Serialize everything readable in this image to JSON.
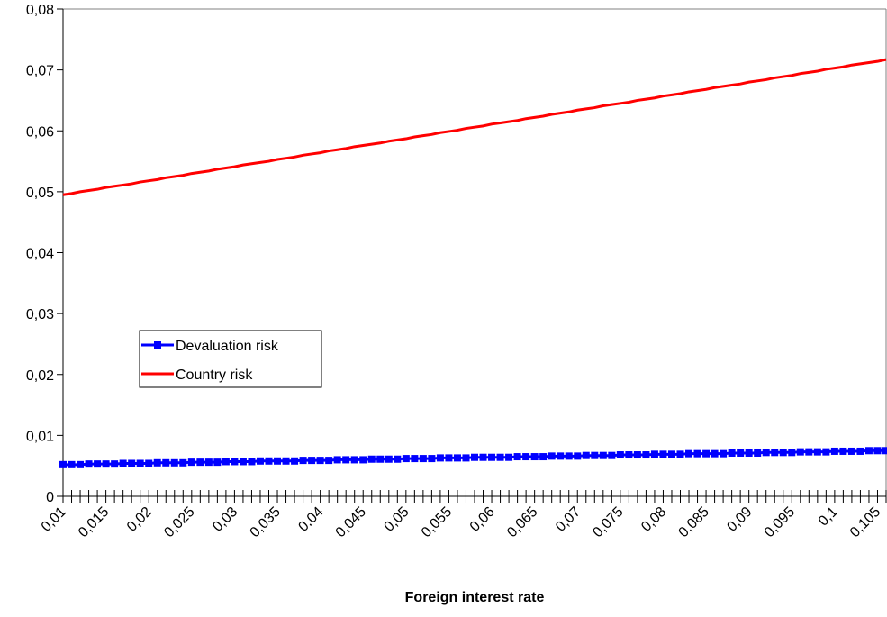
{
  "chart_data": {
    "type": "line",
    "xlabel": "Foreign interest rate",
    "categories": [
      "0,01",
      null,
      null,
      null,
      null,
      "0,015",
      null,
      null,
      null,
      null,
      "0,02",
      null,
      null,
      null,
      null,
      "0,025",
      null,
      null,
      null,
      null,
      "0,03",
      null,
      null,
      null,
      null,
      "0,035",
      null,
      null,
      null,
      null,
      "0,04",
      null,
      null,
      null,
      null,
      "0,045",
      null,
      null,
      null,
      null,
      "0,05",
      null,
      null,
      null,
      null,
      "0,055",
      null,
      null,
      null,
      null,
      "0,06",
      null,
      null,
      null,
      null,
      "0,065",
      null,
      null,
      null,
      null,
      "0,07",
      null,
      null,
      null,
      null,
      "0,075",
      null,
      null,
      null,
      null,
      "0,08",
      null,
      null,
      null,
      null,
      "0,085",
      null,
      null,
      null,
      null,
      "0,09",
      null,
      null,
      null,
      null,
      "0,095",
      null,
      null,
      null,
      null,
      "0,1",
      null,
      null,
      null,
      null,
      "0,105",
      null
    ],
    "series": [
      {
        "name": "Devaluation risk",
        "color": "#0000ff",
        "marker": "square",
        "values": [
          0.0052,
          0.0052,
          0.0052,
          0.0053,
          0.0053,
          0.0053,
          0.0053,
          0.0054,
          0.0054,
          0.0054,
          0.0054,
          0.0055,
          0.0055,
          0.0055,
          0.0055,
          0.0056,
          0.0056,
          0.0056,
          0.0056,
          0.0057,
          0.0057,
          0.0057,
          0.0057,
          0.0058,
          0.0058,
          0.0058,
          0.0058,
          0.0058,
          0.0059,
          0.0059,
          0.0059,
          0.0059,
          0.006,
          0.006,
          0.006,
          0.006,
          0.0061,
          0.0061,
          0.0061,
          0.0061,
          0.0062,
          0.0062,
          0.0062,
          0.0062,
          0.0063,
          0.0063,
          0.0063,
          0.0063,
          0.0064,
          0.0064,
          0.0064,
          0.0064,
          0.0064,
          0.0065,
          0.0065,
          0.0065,
          0.0065,
          0.0066,
          0.0066,
          0.0066,
          0.0066,
          0.0067,
          0.0067,
          0.0067,
          0.0067,
          0.0068,
          0.0068,
          0.0068,
          0.0068,
          0.0069,
          0.0069,
          0.0069,
          0.0069,
          0.007,
          0.007,
          0.007,
          0.007,
          0.007,
          0.0071,
          0.0071,
          0.0071,
          0.0071,
          0.0072,
          0.0072,
          0.0072,
          0.0072,
          0.0073,
          0.0073,
          0.0073,
          0.0073,
          0.0074,
          0.0074,
          0.0074,
          0.0074,
          0.0075,
          0.0075,
          0.0075
        ]
      },
      {
        "name": "Country risk",
        "color": "#ff0000",
        "values": [
          0.0495,
          0.0497,
          0.05,
          0.0502,
          0.0504,
          0.0507,
          0.0509,
          0.0511,
          0.0513,
          0.0516,
          0.0518,
          0.052,
          0.0523,
          0.0525,
          0.0527,
          0.053,
          0.0532,
          0.0534,
          0.0537,
          0.0539,
          0.0541,
          0.0544,
          0.0546,
          0.0548,
          0.055,
          0.0553,
          0.0555,
          0.0557,
          0.056,
          0.0562,
          0.0564,
          0.0567,
          0.0569,
          0.0571,
          0.0574,
          0.0576,
          0.0578,
          0.058,
          0.0583,
          0.0585,
          0.0587,
          0.059,
          0.0592,
          0.0594,
          0.0597,
          0.0599,
          0.0601,
          0.0604,
          0.0606,
          0.0608,
          0.0611,
          0.0613,
          0.0615,
          0.0617,
          0.062,
          0.0622,
          0.0624,
          0.0627,
          0.0629,
          0.0631,
          0.0634,
          0.0636,
          0.0638,
          0.0641,
          0.0643,
          0.0645,
          0.0647,
          0.065,
          0.0652,
          0.0654,
          0.0657,
          0.0659,
          0.0661,
          0.0664,
          0.0666,
          0.0668,
          0.0671,
          0.0673,
          0.0675,
          0.0677,
          0.068,
          0.0682,
          0.0684,
          0.0687,
          0.0689,
          0.0691,
          0.0694,
          0.0696,
          0.0698,
          0.0701,
          0.0703,
          0.0705,
          0.0708,
          0.071,
          0.0712,
          0.0714,
          0.0717
        ]
      }
    ],
    "ylim": [
      0,
      0.08
    ],
    "yticks": [
      {
        "value": 0,
        "label": "0"
      },
      {
        "value": 0.01,
        "label": "0,01"
      },
      {
        "value": 0.02,
        "label": "0,02"
      },
      {
        "value": 0.03,
        "label": "0,03"
      },
      {
        "value": 0.04,
        "label": "0,04"
      },
      {
        "value": 0.05,
        "label": "0,05"
      },
      {
        "value": 0.06,
        "label": "0,06"
      },
      {
        "value": 0.07,
        "label": "0,07"
      },
      {
        "value": 0.08,
        "label": "0,08"
      }
    ],
    "grid": false,
    "legend": "left"
  }
}
